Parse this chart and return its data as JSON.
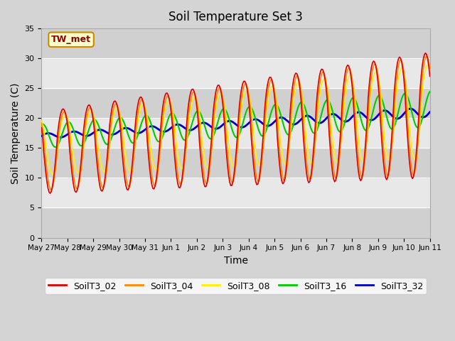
{
  "title": "Soil Temperature Set 3",
  "xlabel": "Time",
  "ylabel": "Soil Temperature (C)",
  "ylim": [
    0,
    35
  ],
  "annotation": "TW_met",
  "fig_bg": "#d4d4d4",
  "plot_bg": "#e8e8e8",
  "band_colors": [
    "#d0d0d0",
    "#e8e8e8"
  ],
  "series": {
    "SoilT3_02": {
      "color": "#dd0000",
      "lw": 1.2
    },
    "SoilT3_04": {
      "color": "#ff8800",
      "lw": 1.2
    },
    "SoilT3_08": {
      "color": "#ffee00",
      "lw": 1.2
    },
    "SoilT3_16": {
      "color": "#00cc00",
      "lw": 1.5
    },
    "SoilT3_32": {
      "color": "#0000cc",
      "lw": 2.0
    }
  },
  "tick_labels": [
    "May 27",
    "May 28",
    "May 29",
    "May 30",
    "May 31",
    "Jun 1",
    "Jun 2",
    "Jun 3",
    "Jun 4",
    "Jun 5",
    "Jun 6",
    "Jun 7",
    "Jun 8",
    "Jun 9",
    "Jun 10",
    "Jun 11"
  ],
  "yticks": [
    0,
    5,
    10,
    15,
    20,
    25,
    30,
    35
  ],
  "n_days": 15
}
